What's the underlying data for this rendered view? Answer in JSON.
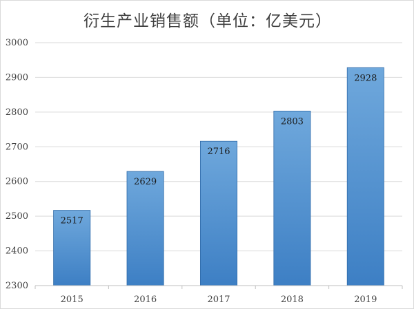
{
  "chart_data": {
    "type": "bar",
    "title": "衍生产业销售额（单位：亿美元）",
    "categories": [
      "2015",
      "2016",
      "2017",
      "2018",
      "2019"
    ],
    "values": [
      2517,
      2629,
      2716,
      2803,
      2928
    ],
    "ylim": [
      2300,
      3000
    ],
    "yticks": [
      2300,
      2400,
      2500,
      2600,
      2700,
      2800,
      2900,
      3000
    ],
    "xlabel": "",
    "ylabel": "",
    "grid": true,
    "legend": "none",
    "bar_color_top": "#6fa8dc",
    "bar_color_bottom": "#3d7fc4",
    "bar_edge": "#2f6aa8"
  }
}
